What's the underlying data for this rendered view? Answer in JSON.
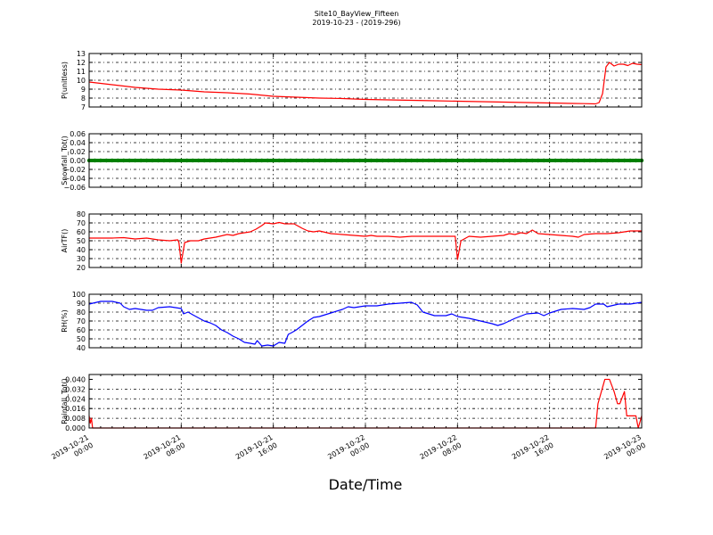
{
  "figure": {
    "title_line1": "Site10_BayView_Fifteen",
    "title_line2": "2019-10-23 - (2019-296)",
    "xlabel": "Date/Time"
  },
  "x_ticks": [
    [
      "2019-10-21",
      "00:00"
    ],
    [
      "2019-10-21",
      "08:00"
    ],
    [
      "2019-10-21",
      "16:00"
    ],
    [
      "2019-10-22",
      "00:00"
    ],
    [
      "2019-10-22",
      "08:00"
    ],
    [
      "2019-10-22",
      "16:00"
    ],
    [
      "2019-10-23",
      "00:00"
    ]
  ],
  "chart_data": [
    {
      "type": "line",
      "ylabel": "P(unitless)",
      "ylim": [
        7,
        13
      ],
      "yticks": [
        7,
        8,
        9,
        10,
        11,
        12,
        13
      ],
      "ytick_labels": [
        "7",
        "8",
        "9",
        "10",
        "11",
        "12",
        "13"
      ],
      "color": "#ff0000",
      "x_range_hours": [
        0,
        48
      ],
      "grid": true,
      "points": [
        [
          0,
          9.8
        ],
        [
          2,
          9.5
        ],
        [
          4,
          9.2
        ],
        [
          6,
          9.0
        ],
        [
          8,
          8.9
        ],
        [
          10,
          8.7
        ],
        [
          12,
          8.6
        ],
        [
          14,
          8.45
        ],
        [
          16,
          8.2
        ],
        [
          18,
          8.1
        ],
        [
          20,
          8.0
        ],
        [
          22,
          7.95
        ],
        [
          24,
          7.85
        ],
        [
          26,
          7.8
        ],
        [
          28,
          7.75
        ],
        [
          30,
          7.7
        ],
        [
          32,
          7.65
        ],
        [
          34,
          7.6
        ],
        [
          36,
          7.55
        ],
        [
          38,
          7.5
        ],
        [
          40,
          7.45
        ],
        [
          42,
          7.4
        ],
        [
          43,
          7.38
        ],
        [
          44,
          7.35
        ],
        [
          44.3,
          7.5
        ],
        [
          44.6,
          8.5
        ],
        [
          44.9,
          11.5
        ],
        [
          45.2,
          12
        ],
        [
          45.6,
          11.6
        ],
        [
          46,
          11.8
        ],
        [
          46.4,
          11.8
        ],
        [
          46.8,
          11.65
        ],
        [
          47.2,
          11.9
        ],
        [
          47.6,
          11.8
        ],
        [
          48,
          11.75
        ]
      ]
    },
    {
      "type": "line",
      "ylabel": "Snowfall_Tot()",
      "ylim": [
        -0.06,
        0.06
      ],
      "yticks": [
        -0.06,
        -0.04,
        -0.02,
        0,
        0.02,
        0.04,
        0.06
      ],
      "ytick_labels": [
        "−0.06",
        "−0.04",
        "−0.02",
        "0.00",
        "0.02",
        "0.04",
        "0.06"
      ],
      "color": "#008000",
      "x_range_hours": [
        0,
        48
      ],
      "grid": true,
      "markers": true,
      "points": [
        [
          0,
          0
        ],
        [
          48,
          0
        ]
      ]
    },
    {
      "type": "line",
      "ylabel": "AirTF()",
      "ylim": [
        20,
        80
      ],
      "yticks": [
        20,
        30,
        40,
        50,
        60,
        70,
        80
      ],
      "ytick_labels": [
        "20",
        "30",
        "40",
        "50",
        "60",
        "70",
        "80"
      ],
      "color": "#ff0000",
      "x_range_hours": [
        0,
        48
      ],
      "grid": true,
      "points": [
        [
          0,
          53
        ],
        [
          2,
          53
        ],
        [
          3,
          53.5
        ],
        [
          4,
          52
        ],
        [
          5,
          53
        ],
        [
          6,
          51
        ],
        [
          7,
          50
        ],
        [
          7.7,
          51
        ],
        [
          7.8,
          48
        ],
        [
          8,
          25
        ],
        [
          8.3,
          48
        ],
        [
          8.8,
          50
        ],
        [
          9.5,
          50
        ],
        [
          10,
          52
        ],
        [
          11,
          54
        ],
        [
          12,
          57
        ],
        [
          12.5,
          56
        ],
        [
          13,
          58
        ],
        [
          14,
          60
        ],
        [
          14.5,
          63
        ],
        [
          15,
          67
        ],
        [
          15.3,
          70
        ],
        [
          16,
          69
        ],
        [
          16.5,
          70.5
        ],
        [
          17,
          69
        ],
        [
          17.8,
          69
        ],
        [
          18.5,
          64
        ],
        [
          19,
          61
        ],
        [
          19.5,
          60
        ],
        [
          20,
          61
        ],
        [
          21,
          58
        ],
        [
          22,
          57
        ],
        [
          23,
          56
        ],
        [
          24,
          55
        ],
        [
          24.5,
          56
        ],
        [
          25,
          55
        ],
        [
          26,
          55
        ],
        [
          27,
          54
        ],
        [
          28,
          55
        ],
        [
          29,
          55
        ],
        [
          30,
          55
        ],
        [
          31,
          55
        ],
        [
          31.8,
          55
        ],
        [
          32,
          29
        ],
        [
          32.3,
          50
        ],
        [
          33,
          55
        ],
        [
          34,
          54
        ],
        [
          35,
          55
        ],
        [
          36,
          56
        ],
        [
          36.5,
          58
        ],
        [
          37,
          57
        ],
        [
          37.5,
          59
        ],
        [
          38,
          58
        ],
        [
          38.5,
          62
        ],
        [
          39,
          58
        ],
        [
          40,
          57
        ],
        [
          41,
          56
        ],
        [
          42,
          55
        ],
        [
          42.5,
          54
        ],
        [
          43,
          57
        ],
        [
          44,
          58
        ],
        [
          45,
          58
        ],
        [
          46,
          59
        ],
        [
          47,
          61
        ],
        [
          48,
          61
        ]
      ]
    },
    {
      "type": "line",
      "ylabel": "RH(%)",
      "ylim": [
        40,
        100
      ],
      "yticks": [
        40,
        50,
        60,
        70,
        80,
        90,
        100
      ],
      "ytick_labels": [
        "40",
        "50",
        "60",
        "70",
        "80",
        "90",
        "100"
      ],
      "color": "#0000ff",
      "x_range_hours": [
        0,
        48
      ],
      "grid": true,
      "points": [
        [
          0,
          89
        ],
        [
          1,
          92
        ],
        [
          2,
          92
        ],
        [
          2.7,
          90
        ],
        [
          3,
          86
        ],
        [
          3.5,
          83
        ],
        [
          4,
          84
        ],
        [
          5,
          82
        ],
        [
          5.5,
          82
        ],
        [
          6,
          85
        ],
        [
          7,
          86
        ],
        [
          8,
          84
        ],
        [
          8.2,
          78
        ],
        [
          8.6,
          80
        ],
        [
          9,
          77
        ],
        [
          10,
          70
        ],
        [
          10.5,
          68
        ],
        [
          11,
          65
        ],
        [
          11.5,
          60
        ],
        [
          12,
          57
        ],
        [
          12.5,
          53
        ],
        [
          13,
          50
        ],
        [
          13.5,
          46
        ],
        [
          14,
          45
        ],
        [
          14.4,
          44
        ],
        [
          14.6,
          48
        ],
        [
          15,
          42
        ],
        [
          15.5,
          43
        ],
        [
          16,
          42
        ],
        [
          16.5,
          46
        ],
        [
          17,
          45
        ],
        [
          17.3,
          55
        ],
        [
          17.6,
          57
        ],
        [
          18,
          60
        ],
        [
          18.5,
          65
        ],
        [
          19,
          70
        ],
        [
          19.5,
          74
        ],
        [
          20,
          75
        ],
        [
          21,
          79
        ],
        [
          22,
          83
        ],
        [
          22.5,
          86
        ],
        [
          23,
          85
        ],
        [
          24,
          87
        ],
        [
          25,
          87
        ],
        [
          26,
          89
        ],
        [
          27,
          90
        ],
        [
          28,
          91
        ],
        [
          28.5,
          88
        ],
        [
          29,
          80
        ],
        [
          30,
          76
        ],
        [
          31,
          76
        ],
        [
          31.5,
          78
        ],
        [
          32,
          75
        ],
        [
          33,
          73
        ],
        [
          34,
          70
        ],
        [
          35,
          67
        ],
        [
          35.5,
          65
        ],
        [
          36,
          67
        ],
        [
          37,
          73
        ],
        [
          38,
          78
        ],
        [
          39,
          79
        ],
        [
          39.5,
          76
        ],
        [
          40,
          79
        ],
        [
          41,
          83
        ],
        [
          42,
          84
        ],
        [
          43,
          83
        ],
        [
          43.5,
          85
        ],
        [
          44,
          89
        ],
        [
          44.7,
          89
        ],
        [
          45,
          86
        ],
        [
          46,
          89
        ],
        [
          47,
          89
        ],
        [
          48,
          91
        ]
      ]
    },
    {
      "type": "line",
      "ylabel": "Rainfall_Tot()",
      "ylim": [
        0,
        0.044
      ],
      "yticks": [
        0,
        0.008,
        0.016,
        0.024,
        0.032,
        0.04
      ],
      "ytick_labels": [
        "0.000",
        "0.008",
        "0.016",
        "0.024",
        "0.032",
        "0.040"
      ],
      "color": "#ff0000",
      "x_range_hours": [
        0,
        48
      ],
      "grid": true,
      "points": [
        [
          0,
          0.01
        ],
        [
          0.1,
          0.004
        ],
        [
          0.2,
          0.008
        ],
        [
          0.3,
          0
        ],
        [
          44,
          0
        ],
        [
          44.2,
          0.02
        ],
        [
          44.5,
          0.03
        ],
        [
          44.8,
          0.04
        ],
        [
          45.2,
          0.04
        ],
        [
          45.6,
          0.03
        ],
        [
          45.9,
          0.02
        ],
        [
          46.1,
          0.02
        ],
        [
          46.5,
          0.03
        ],
        [
          46.7,
          0.01
        ],
        [
          47.5,
          0.01
        ],
        [
          47.7,
          0
        ],
        [
          48,
          0.01
        ]
      ]
    }
  ]
}
